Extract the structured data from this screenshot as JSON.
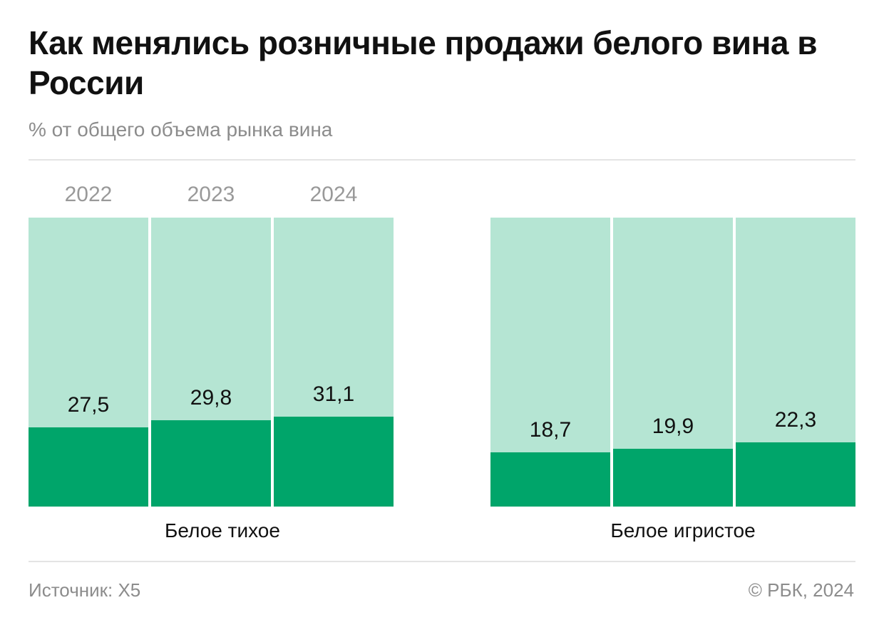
{
  "header": {
    "title": "Как менялись розничные продажи белого вина в России",
    "subtitle": "% от общего объема рынка вина"
  },
  "footer": {
    "source": "Источник: X5",
    "copyright": "© РБК, 2024"
  },
  "colors": {
    "share": "#00a56a",
    "remainder": "#b5e5d3"
  },
  "chart_data": {
    "type": "bar",
    "stacked": true,
    "ylim": [
      0,
      100
    ],
    "categories": [
      "2022",
      "2023",
      "2024"
    ],
    "groups": [
      {
        "name": "Белое тихое",
        "values": [
          27.5,
          29.8,
          31.1
        ],
        "labels": [
          "27,5",
          "29,8",
          "31,1"
        ]
      },
      {
        "name": "Белое игристое",
        "values": [
          18.7,
          19.9,
          22.3
        ],
        "labels": [
          "18,7",
          "19,9",
          "22,3"
        ]
      }
    ],
    "grid": false,
    "legend": "none"
  }
}
